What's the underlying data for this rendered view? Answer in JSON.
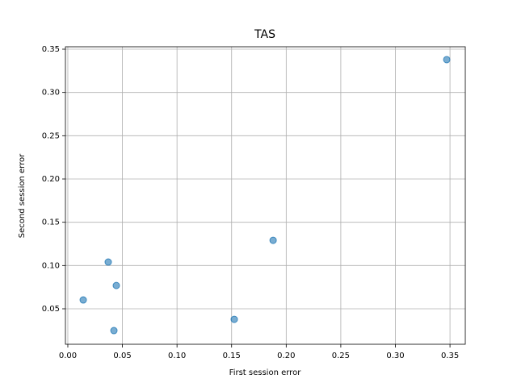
{
  "chart_data": {
    "type": "scatter",
    "title": "TAS",
    "x_label": "First session error",
    "y_label": "Second session error",
    "series": [
      {
        "color": "#1f77b4",
        "x": [
          0.347,
          0.188,
          0.037,
          0.0444,
          0.0141,
          0.1524,
          0.0422
        ],
        "values": [
          0.3379,
          0.1291,
          0.104,
          0.0769,
          0.0602,
          0.0378,
          0.0248
        ]
      }
    ],
    "xlim": [
      -0.0022,
      0.364
    ],
    "ylim": [
      0.009,
      0.3528
    ],
    "xticks": [
      {
        "value": 0,
        "label": "0.00"
      },
      0.05,
      {
        "value": 0.1,
        "label": "0.10"
      },
      0.15,
      {
        "value": 0.2,
        "label": "0.20"
      },
      0.25,
      {
        "value": 0.3,
        "label": "0.30"
      },
      0.35
    ],
    "yticks": [
      0.05,
      {
        "value": 0.1,
        "label": "0.10"
      },
      0.15,
      {
        "value": 0.2,
        "label": "0.20"
      },
      0.25,
      {
        "value": 0.3,
        "label": "0.30"
      },
      0.35
    ],
    "grid": true
  }
}
